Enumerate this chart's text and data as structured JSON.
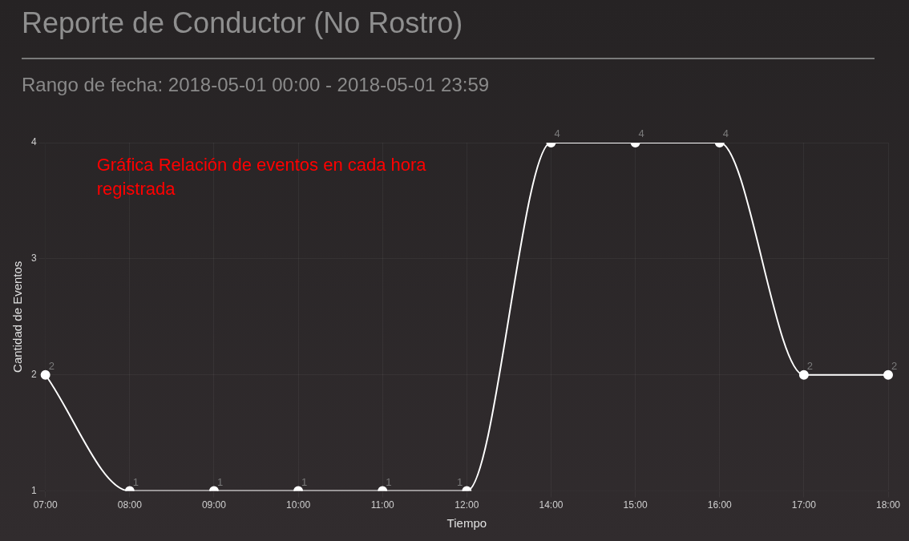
{
  "chart_data": {
    "type": "line",
    "title": "Reporte de Conductor (No Rostro)",
    "subtitle": "Rango de fecha: 2018-05-01 00:00 - 2018-05-01 23:59",
    "xlabel": "Tiempo",
    "ylabel": "Cantidad de Eventos",
    "annotations": [
      "Gráfica Relación de eventos en cada hora registrada"
    ],
    "categories": [
      "07:00",
      "08:00",
      "09:00",
      "10:00",
      "11:00",
      "12:00",
      "14:00",
      "15:00",
      "16:00",
      "17:00",
      "18:00"
    ],
    "series": [
      {
        "color": "#ffffff",
        "values": [
          2,
          1,
          1,
          1,
          1,
          1,
          4,
          4,
          4,
          2,
          2
        ]
      }
    ],
    "ylim": [
      1,
      4
    ],
    "yticks": [
      1,
      2,
      3,
      4
    ],
    "grid": true,
    "legend": false,
    "marker": "circle",
    "line_style": "solid",
    "data_labels": true
  }
}
